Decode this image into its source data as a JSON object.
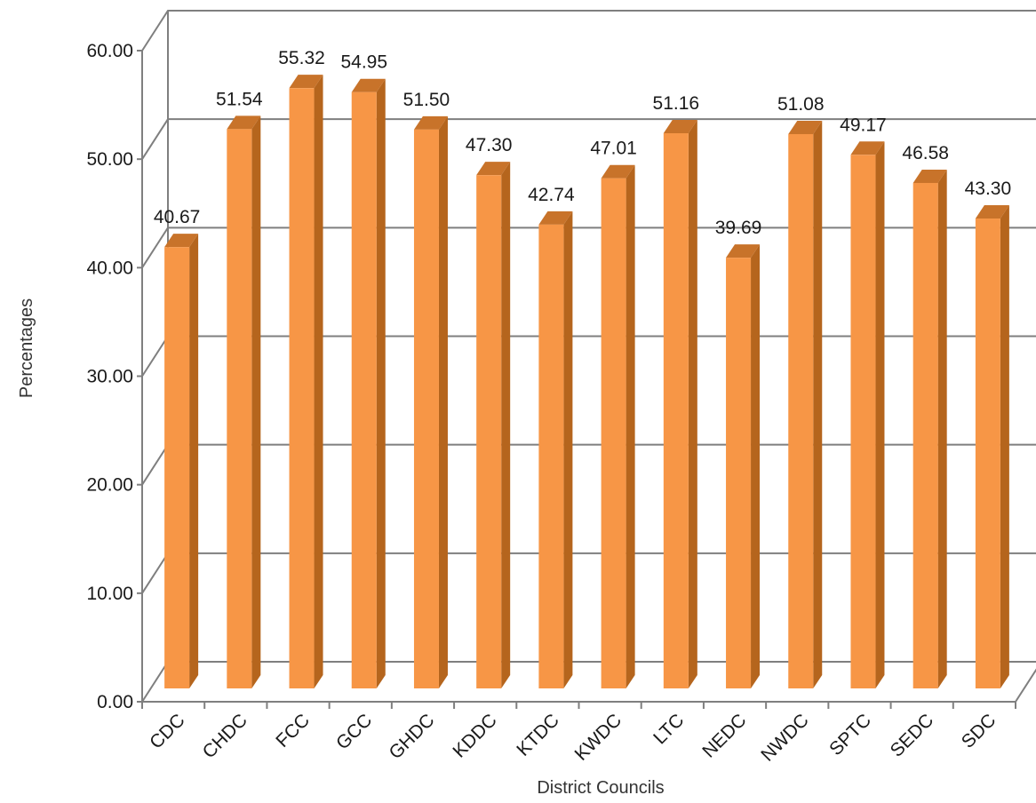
{
  "chart_data": {
    "type": "bar",
    "style": "3d-column",
    "categories": [
      "CDC",
      "CHDC",
      "FCC",
      "GCC",
      "GHDC",
      "KDDC",
      "KTDC",
      "KWDC",
      "LTC",
      "NEDC",
      "NWDC",
      "SPTC",
      "SEDC",
      "SDC"
    ],
    "values": [
      40.67,
      51.54,
      55.32,
      54.95,
      51.5,
      47.3,
      42.74,
      47.01,
      51.16,
      39.69,
      51.08,
      49.17,
      46.58,
      43.3
    ],
    "data_labels": [
      "40.67",
      "51.54",
      "55.32",
      "54.95",
      "51.50",
      "47.30",
      "42.74",
      "47.01",
      "51.16",
      "39.69",
      "51.08",
      "49.17",
      "46.58",
      "43.30"
    ],
    "y_ticks": [
      "0.00",
      "10.00",
      "20.00",
      "30.00",
      "40.00",
      "50.00",
      "60.00"
    ],
    "ylim": [
      0,
      60
    ],
    "title": "",
    "xlabel": "District Councils",
    "ylabel": "Percentages",
    "grid": true,
    "legend": "none",
    "colors": {
      "bar_front": "#f79646",
      "bar_side": "#b5651d",
      "bar_top": "#c8732a",
      "gridline": "#7f7f7f",
      "text": "#1a1a1a"
    }
  }
}
